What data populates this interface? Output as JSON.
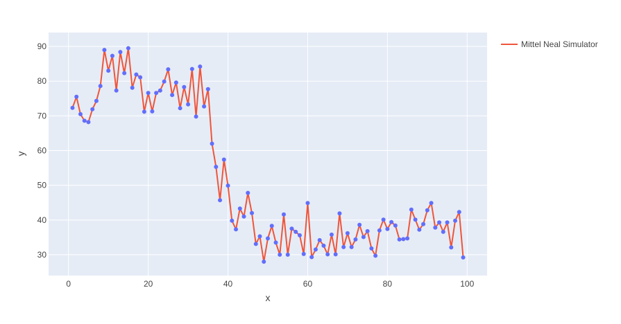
{
  "chart_data": {
    "type": "line",
    "mode": "lines+markers",
    "xlabel": "x",
    "ylabel": "y",
    "xlim": [
      -5,
      105
    ],
    "ylim": [
      24,
      94
    ],
    "xticks": [
      0,
      20,
      40,
      60,
      80,
      100
    ],
    "yticks": [
      30,
      40,
      50,
      60,
      70,
      80,
      90
    ],
    "grid": true,
    "legend": "top-right",
    "colors": {
      "line": "#EF553B",
      "marker": "#636EFA",
      "plot_bg": "#E5ECF6",
      "grid": "#ffffff"
    },
    "series": [
      {
        "name": "Mittel Neal Simulator",
        "x": [
          1,
          2,
          3,
          4,
          5,
          6,
          7,
          8,
          9,
          10,
          11,
          12,
          13,
          14,
          15,
          16,
          17,
          18,
          19,
          20,
          21,
          22,
          23,
          24,
          25,
          26,
          27,
          28,
          29,
          30,
          31,
          32,
          33,
          34,
          35,
          36,
          37,
          38,
          39,
          40,
          41,
          42,
          43,
          44,
          45,
          46,
          47,
          48,
          49,
          50,
          51,
          52,
          53,
          54,
          55,
          56,
          57,
          58,
          59,
          60,
          61,
          62,
          63,
          64,
          65,
          66,
          67,
          68,
          69,
          70,
          71,
          72,
          73,
          74,
          75,
          76,
          77,
          78,
          79,
          80,
          81,
          82,
          83,
          84,
          85,
          86,
          87,
          88,
          89,
          90,
          91,
          92,
          93,
          94,
          95,
          96,
          97,
          98,
          99
        ],
        "y": [
          72.3,
          75.5,
          70.5,
          68.6,
          68.2,
          71.9,
          74.3,
          78.6,
          89.0,
          83.0,
          87.3,
          77.3,
          88.4,
          82.3,
          89.5,
          78.1,
          81.9,
          81.1,
          71.2,
          76.6,
          71.3,
          76.6,
          77.3,
          79.9,
          83.4,
          76.0,
          79.6,
          72.2,
          78.3,
          73.3,
          83.5,
          69.8,
          84.2,
          72.7,
          77.7,
          62.0,
          55.3,
          45.7,
          57.4,
          49.9,
          39.8,
          37.3,
          43.3,
          41.0,
          47.8,
          42.0,
          33.1,
          35.3,
          28.0,
          34.7,
          38.3,
          33.5,
          30.0,
          41.6,
          30.0,
          37.5,
          36.6,
          35.6,
          30.2,
          44.9,
          29.3,
          31.5,
          34.2,
          32.6,
          30.1,
          35.8,
          30.1,
          41.9,
          32.2,
          36.2,
          32.2,
          34.4,
          38.6,
          35.1,
          36.8,
          31.8,
          29.7,
          37.0,
          40.1,
          37.4,
          39.4,
          38.4,
          34.4,
          34.5,
          34.7,
          43.0,
          40.1,
          37.2,
          38.8,
          42.8,
          44.9,
          37.8,
          39.3,
          36.6,
          39.3,
          32.1,
          39.8,
          42.3,
          29.2
        ]
      }
    ]
  }
}
